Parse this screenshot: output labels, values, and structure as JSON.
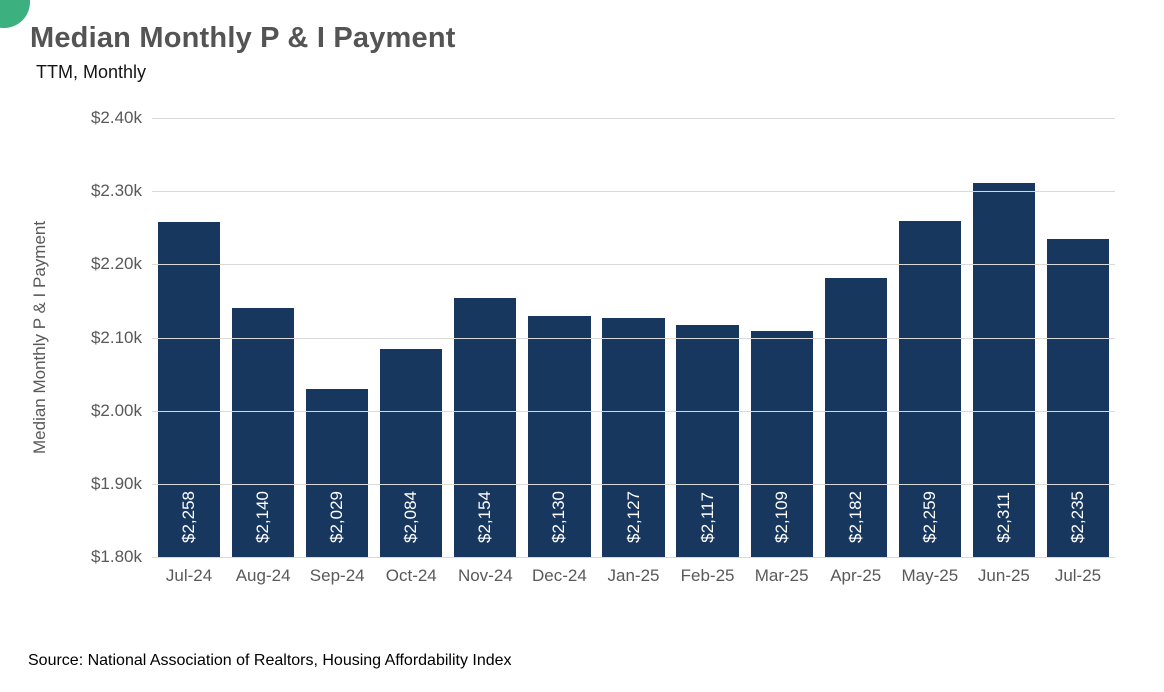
{
  "page": {
    "title": "Median Monthly P & I Payment",
    "subtitle": "TTM, Monthly",
    "source": "Source: National Association of Realtors, Housing Affordability Index",
    "accent_color": "#3cb07e"
  },
  "chart_data": {
    "type": "bar",
    "title": "Median Monthly P & I Payment",
    "subtitle": "TTM, Monthly",
    "categories": [
      "Jul-24",
      "Aug-24",
      "Sep-24",
      "Oct-24",
      "Nov-24",
      "Dec-24",
      "Jan-25",
      "Feb-25",
      "Mar-25",
      "Apr-25",
      "May-25",
      "Jun-25",
      "Jul-25"
    ],
    "values": [
      2258,
      2140,
      2029,
      2084,
      2154,
      2130,
      2127,
      2117,
      2109,
      2182,
      2259,
      2311,
      2235
    ],
    "bar_labels": [
      "$2,258",
      "$2,140",
      "$2,029",
      "$2,084",
      "$2,154",
      "$2,130",
      "$2,127",
      "$2,117",
      "$2,109",
      "$2,182",
      "$2,259",
      "$2,311",
      "$2,235"
    ],
    "xlabel": "",
    "ylabel": "Median Monthly P & I Payment",
    "ylim": [
      1800,
      2400
    ],
    "yticks": [
      2400,
      2300,
      2200,
      2100,
      2000,
      1900,
      1800
    ],
    "ytick_labels": [
      "$2.40k",
      "$2.30k",
      "$2.20k",
      "$2.10k",
      "$2.00k",
      "$1.90k",
      "$1.80k"
    ],
    "bar_color": "#17375e",
    "grid": true,
    "legend": false,
    "bar_label_position": "inside-bottom-rotated",
    "source": "Source: National Association of Realtors, Housing Affordability Index"
  }
}
